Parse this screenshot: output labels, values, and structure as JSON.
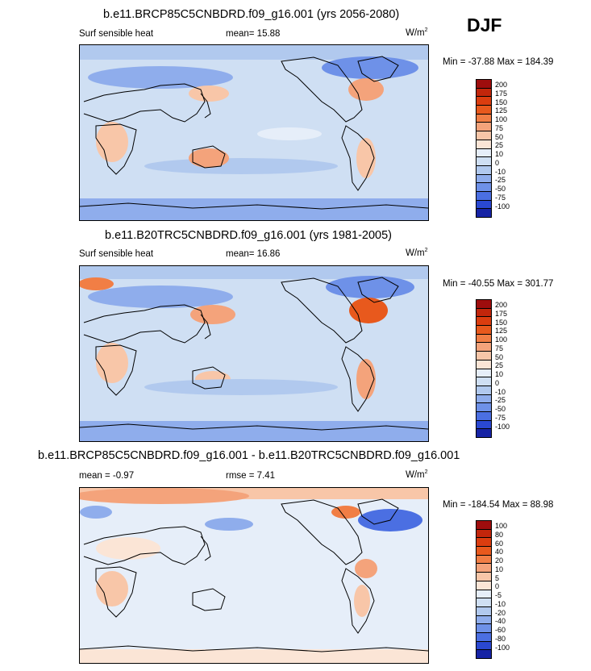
{
  "season": "DJF",
  "legend_colors": [
    "#9e0d0d",
    "#c2260b",
    "#db3d0f",
    "#e8591d",
    "#f17e45",
    "#f4a37b",
    "#f8c6a8",
    "#fbe5d6",
    "#e6eef9",
    "#cfdff3",
    "#b1c9ee",
    "#8fadec",
    "#6e91e8",
    "#4b6fe2",
    "#2a48d2",
    "#1623a5",
    "#0a0a70"
  ],
  "panels": [
    {
      "title": "b.e11.BRCP85C5CNBDRD.f09_g16.001 (yrs 2056-2080)",
      "left_label": "Surf sensible heat",
      "mean_label": "mean=  15.88",
      "units_base": "W/m",
      "units_exp": "2",
      "minmax": "Min = -37.88 Max = 184.39",
      "ticks": [
        "200",
        "175",
        "150",
        "125",
        "100",
        "75",
        "50",
        "25",
        "10",
        "0",
        "-10",
        "-25",
        "-50",
        "-75",
        "-100"
      ]
    },
    {
      "title": "b.e11.B20TRC5CNBDRD.f09_g16.001 (yrs 1981-2005)",
      "left_label": "Surf sensible heat",
      "mean_label": "mean=  16.86",
      "units_base": "W/m",
      "units_exp": "2",
      "minmax": "Min = -40.55 Max = 301.77",
      "ticks": [
        "200",
        "175",
        "150",
        "125",
        "100",
        "75",
        "50",
        "25",
        "10",
        "0",
        "-10",
        "-25",
        "-50",
        "-75",
        "-100"
      ]
    },
    {
      "title": "b.e11.BRCP85C5CNBDRD.f09_g16.001 - b.e11.B20TRC5CNBDRD.f09_g16.001",
      "left_label": "mean =  -0.97",
      "mean_label": "rmse =  7.41",
      "units_base": "W/m",
      "units_exp": "2",
      "minmax": "Min = -184.54 Max =  88.98",
      "ticks": [
        "100",
        "80",
        "60",
        "40",
        "20",
        "10",
        "5",
        "0",
        "-5",
        "-10",
        "-20",
        "-40",
        "-60",
        "-80",
        "-100"
      ]
    }
  ]
}
